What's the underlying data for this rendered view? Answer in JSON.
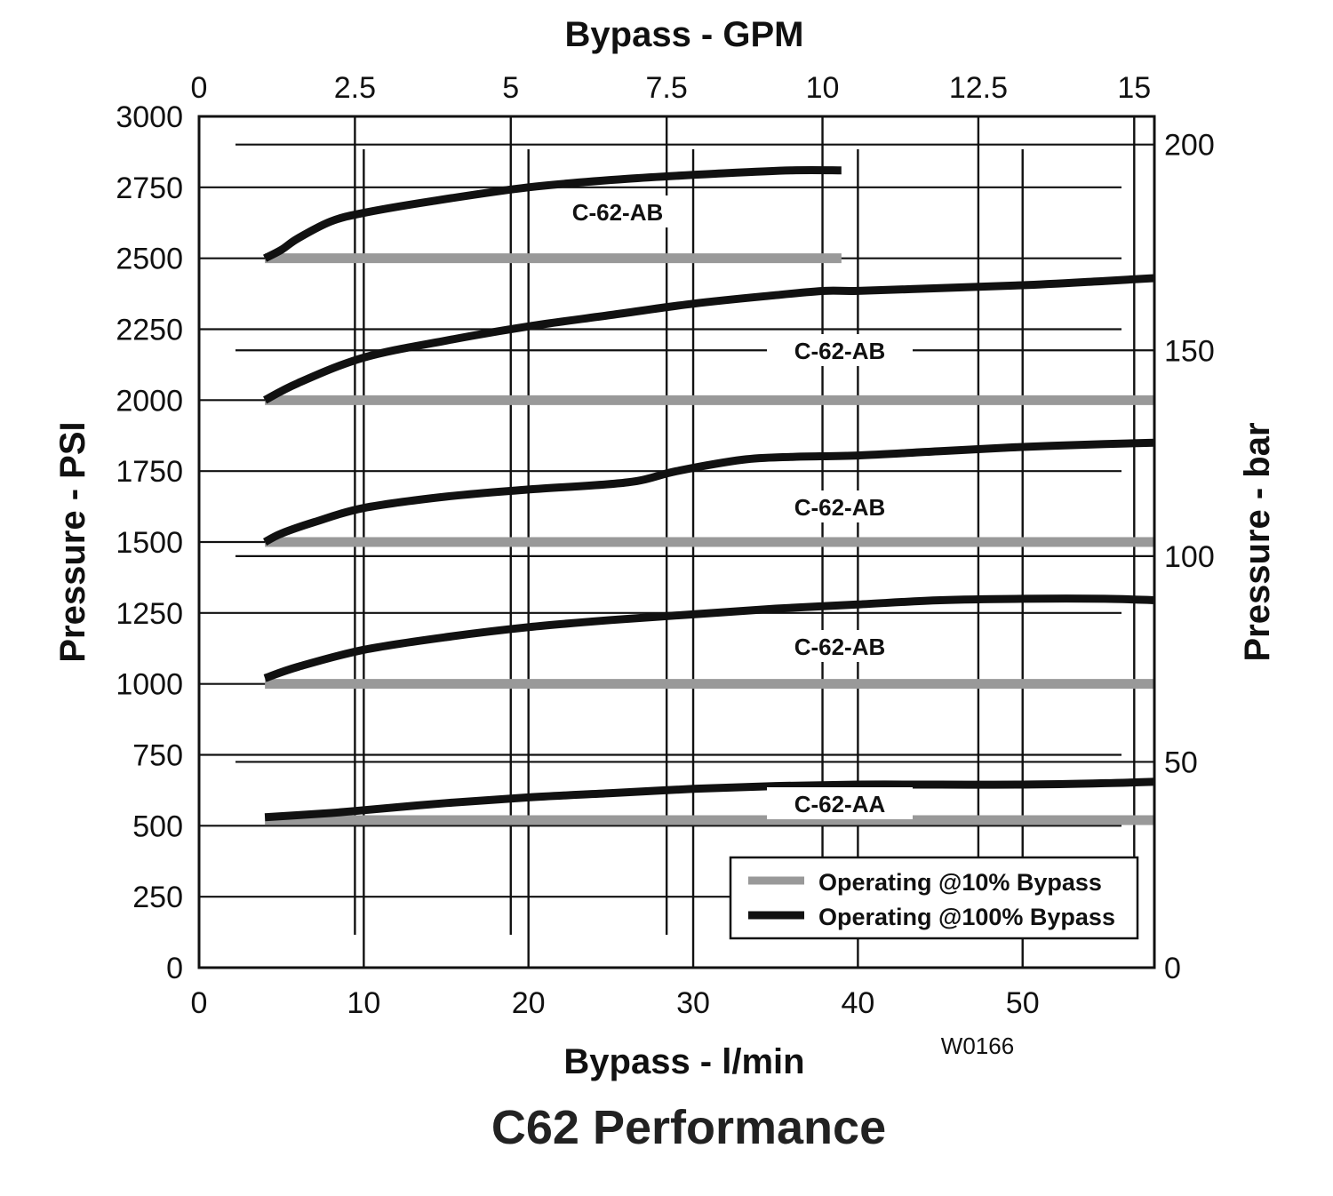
{
  "chart_data": {
    "type": "line",
    "title": "C62 Performance",
    "code": "W0166",
    "x_top_label": "Bypass  -  GPM",
    "x_bottom_label": "Bypass  -  l/min",
    "y_left_label": "Pressure  -  PSI",
    "y_right_label": "Pressure  -  bar",
    "x_range_lpm": [
      0,
      58
    ],
    "y_range_psi": [
      0,
      3000
    ],
    "x_bottom_ticks": [
      "0",
      "10",
      "20",
      "30",
      "40",
      "50"
    ],
    "x_top_ticks": [
      "0",
      "2.5",
      "5",
      "7.5",
      "10",
      "12.5",
      "15"
    ],
    "y_left_ticks": [
      "0",
      "250",
      "500",
      "750",
      "1000",
      "1250",
      "1500",
      "1750",
      "2000",
      "2250",
      "2500",
      "2750",
      "3000"
    ],
    "y_right_ticks": [
      "0",
      "50",
      "100",
      "150",
      "200"
    ],
    "colors": {
      "op10": "#999999",
      "op100": "#111111",
      "grid": "#111111"
    },
    "legend": [
      {
        "key": "op10",
        "label": "Operating @10% Bypass"
      },
      {
        "key": "op100",
        "label": "Operating @100% Bypass"
      }
    ],
    "curves": [
      {
        "label": "C-62-AB",
        "operating_10pct": {
          "psi": 2500,
          "x_start": 4,
          "x_end": 39
        },
        "operating_100pct": [
          [
            4,
            2500
          ],
          [
            5,
            2530
          ],
          [
            6,
            2570
          ],
          [
            8,
            2630
          ],
          [
            10,
            2660
          ],
          [
            14,
            2700
          ],
          [
            20,
            2750
          ],
          [
            26,
            2780
          ],
          [
            32,
            2800
          ],
          [
            36,
            2810
          ],
          [
            39,
            2810
          ]
        ]
      },
      {
        "label": "C-62-AB",
        "operating_10pct": {
          "psi": 2000,
          "x_start": 4,
          "x_end": 58
        },
        "operating_100pct": [
          [
            4,
            2000
          ],
          [
            6,
            2060
          ],
          [
            10,
            2150
          ],
          [
            15,
            2210
          ],
          [
            20,
            2260
          ],
          [
            25,
            2300
          ],
          [
            30,
            2340
          ],
          [
            35,
            2370
          ],
          [
            38,
            2385
          ],
          [
            40,
            2385
          ],
          [
            45,
            2395
          ],
          [
            50,
            2405
          ],
          [
            55,
            2420
          ],
          [
            58,
            2430
          ]
        ]
      },
      {
        "label": "C-62-AB",
        "operating_10pct": {
          "psi": 1500,
          "x_start": 4,
          "x_end": 58
        },
        "operating_100pct": [
          [
            4,
            1500
          ],
          [
            5,
            1530
          ],
          [
            7,
            1570
          ],
          [
            10,
            1620
          ],
          [
            15,
            1660
          ],
          [
            20,
            1685
          ],
          [
            26,
            1710
          ],
          [
            29,
            1750
          ],
          [
            33,
            1790
          ],
          [
            36,
            1800
          ],
          [
            40,
            1805
          ],
          [
            45,
            1820
          ],
          [
            50,
            1835
          ],
          [
            55,
            1845
          ],
          [
            58,
            1850
          ]
        ]
      },
      {
        "label": "C-62-AB",
        "operating_10pct": {
          "psi": 1000,
          "x_start": 4,
          "x_end": 58
        },
        "operating_100pct": [
          [
            4,
            1020
          ],
          [
            6,
            1060
          ],
          [
            10,
            1120
          ],
          [
            15,
            1165
          ],
          [
            20,
            1200
          ],
          [
            25,
            1225
          ],
          [
            30,
            1245
          ],
          [
            35,
            1265
          ],
          [
            40,
            1280
          ],
          [
            45,
            1295
          ],
          [
            50,
            1300
          ],
          [
            55,
            1300
          ],
          [
            58,
            1295
          ]
        ]
      },
      {
        "label": "C-62-AA",
        "operating_10pct": {
          "psi": 520,
          "x_start": 4,
          "x_end": 58
        },
        "operating_100pct": [
          [
            4,
            530
          ],
          [
            8,
            545
          ],
          [
            10,
            555
          ],
          [
            15,
            580
          ],
          [
            20,
            600
          ],
          [
            25,
            615
          ],
          [
            30,
            630
          ],
          [
            35,
            640
          ],
          [
            40,
            645
          ],
          [
            45,
            645
          ],
          [
            50,
            645
          ],
          [
            55,
            650
          ],
          [
            58,
            655
          ]
        ]
      }
    ]
  }
}
